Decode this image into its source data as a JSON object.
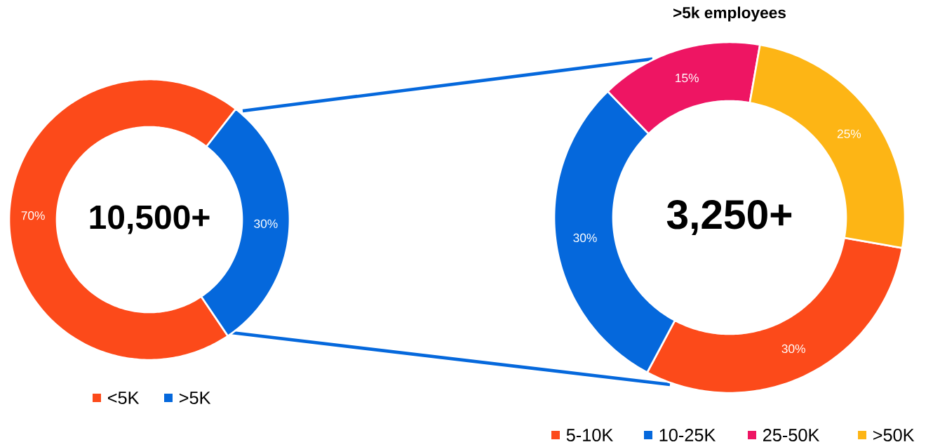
{
  "chart_data": [
    {
      "type": "donut",
      "categories": [
        "<5K",
        ">5K"
      ],
      "values": [
        70,
        30
      ],
      "colors": [
        "#fc4a1a",
        "#0568dc"
      ],
      "value_labels": [
        "70%",
        "30%"
      ],
      "legend": "bottom",
      "annotations": [
        "10,500+"
      ]
    },
    {
      "type": "donut",
      "title": ">5k employees",
      "categories": [
        "5-10K",
        "10-25K",
        "25-50K",
        ">50K"
      ],
      "values": [
        30,
        30,
        15,
        25
      ],
      "colors": [
        "#fc4a1a",
        "#0568dc",
        "#ee1563",
        "#fdb515"
      ],
      "value_labels": [
        "30%",
        "30%",
        "15%",
        "25%"
      ],
      "legend": "bottom",
      "annotations": [
        "3,250+"
      ]
    }
  ]
}
